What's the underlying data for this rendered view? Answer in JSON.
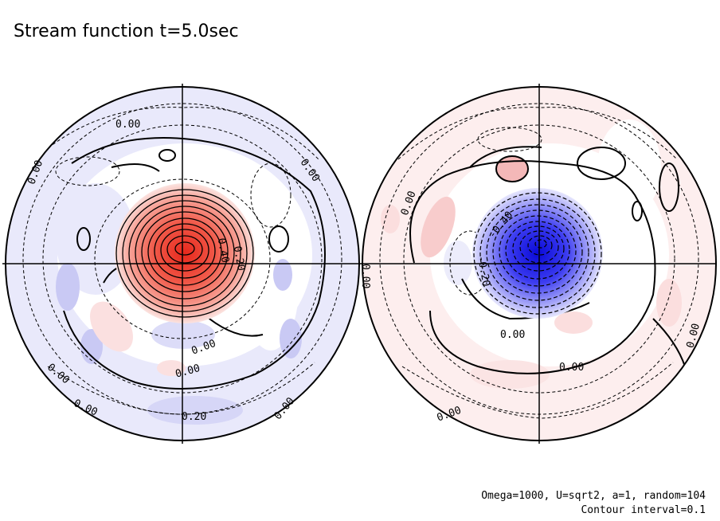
{
  "title": "Stream function t=5.0sec",
  "footnote": {
    "line1": "Omega=1000, U=sqrt2, a=1, random=104",
    "line2": "Contour interval=0.1"
  },
  "colors": {
    "positive": "#f03a2a",
    "positive_light": "#fbe6e6",
    "negative": "#1010e0",
    "negative_light": "#e8e8fb",
    "line": "#000000"
  },
  "left_hemisphere": {
    "contour_labels": [
      "0.00",
      "0.00",
      "0.00",
      "0.40",
      "0.20",
      "0.00",
      "0.00",
      "0.00",
      "0.00",
      "0.00",
      "0.20"
    ]
  },
  "right_hemisphere": {
    "contour_labels": [
      "0.00",
      "-0.40",
      "-0.20",
      "0.00",
      "0.00",
      "0.00",
      "0.00",
      "0.00"
    ]
  }
}
